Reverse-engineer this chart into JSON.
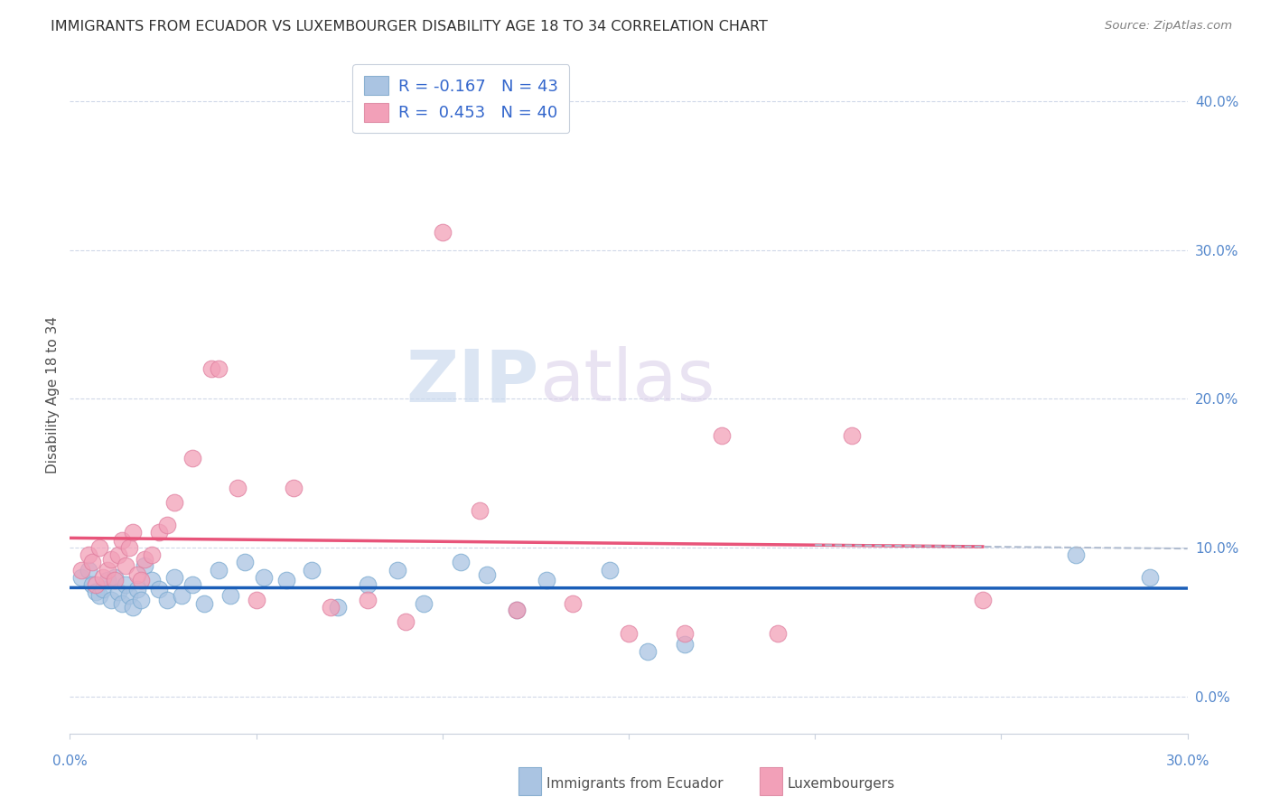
{
  "title": "IMMIGRANTS FROM ECUADOR VS LUXEMBOURGER DISABILITY AGE 18 TO 34 CORRELATION CHART",
  "source": "Source: ZipAtlas.com",
  "ylabel": "Disability Age 18 to 34",
  "right_yticks": [
    "0.0%",
    "10.0%",
    "20.0%",
    "30.0%",
    "40.0%"
  ],
  "right_ytick_vals": [
    0.0,
    0.1,
    0.2,
    0.3,
    0.4
  ],
  "xlim": [
    0.0,
    0.3
  ],
  "ylim": [
    -0.025,
    0.43
  ],
  "legend_entry1": "R = -0.167   N = 43",
  "legend_entry2": "R =  0.453   N = 40",
  "color_ecuador": "#aac4e2",
  "color_luxembourg": "#f2a0b8",
  "trendline_ecuador_color": "#1a5eb8",
  "trendline_luxembourg_color": "#e8547a",
  "trendline_dashed_color": "#b0bccf",
  "watermark_zip": "ZIP",
  "watermark_atlas": "atlas",
  "ecuador_points_x": [
    0.003,
    0.005,
    0.006,
    0.007,
    0.008,
    0.009,
    0.01,
    0.011,
    0.012,
    0.013,
    0.014,
    0.015,
    0.016,
    0.017,
    0.018,
    0.019,
    0.02,
    0.022,
    0.024,
    0.026,
    0.028,
    0.03,
    0.033,
    0.036,
    0.04,
    0.043,
    0.047,
    0.052,
    0.058,
    0.065,
    0.072,
    0.08,
    0.088,
    0.095,
    0.105,
    0.112,
    0.12,
    0.128,
    0.145,
    0.155,
    0.165,
    0.27,
    0.29
  ],
  "ecuador_points_y": [
    0.08,
    0.085,
    0.075,
    0.07,
    0.068,
    0.072,
    0.078,
    0.065,
    0.08,
    0.07,
    0.062,
    0.075,
    0.068,
    0.06,
    0.072,
    0.065,
    0.088,
    0.078,
    0.072,
    0.065,
    0.08,
    0.068,
    0.075,
    0.062,
    0.085,
    0.068,
    0.09,
    0.08,
    0.078,
    0.085,
    0.06,
    0.075,
    0.085,
    0.062,
    0.09,
    0.082,
    0.058,
    0.078,
    0.085,
    0.03,
    0.035,
    0.095,
    0.08
  ],
  "luxembourg_points_x": [
    0.003,
    0.005,
    0.006,
    0.007,
    0.008,
    0.009,
    0.01,
    0.011,
    0.012,
    0.013,
    0.014,
    0.015,
    0.016,
    0.017,
    0.018,
    0.019,
    0.02,
    0.022,
    0.024,
    0.026,
    0.028,
    0.033,
    0.038,
    0.04,
    0.045,
    0.05,
    0.06,
    0.07,
    0.08,
    0.09,
    0.1,
    0.11,
    0.12,
    0.135,
    0.15,
    0.165,
    0.175,
    0.19,
    0.21,
    0.245
  ],
  "luxembourg_points_y": [
    0.085,
    0.095,
    0.09,
    0.075,
    0.1,
    0.08,
    0.085,
    0.092,
    0.078,
    0.095,
    0.105,
    0.088,
    0.1,
    0.11,
    0.082,
    0.078,
    0.092,
    0.095,
    0.11,
    0.115,
    0.13,
    0.16,
    0.22,
    0.22,
    0.14,
    0.065,
    0.14,
    0.06,
    0.065,
    0.05,
    0.312,
    0.125,
    0.058,
    0.062,
    0.042,
    0.042,
    0.175,
    0.042,
    0.175,
    0.065
  ]
}
